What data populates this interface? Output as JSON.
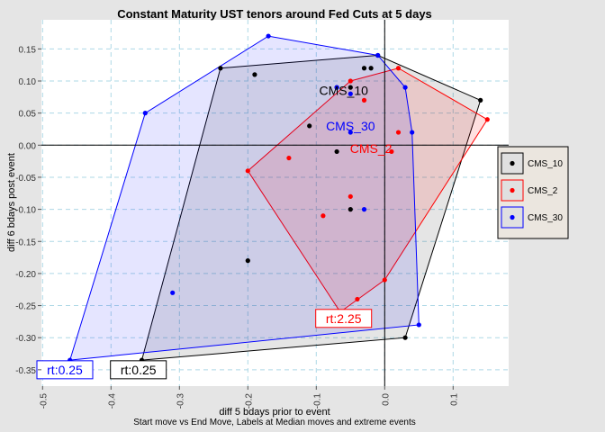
{
  "chart_data": {
    "type": "scatter",
    "title": "Constant Maturity UST tenors around Fed Cuts at 5 days",
    "xlabel": "diff 5 bdays prior to event",
    "ylabel": "diff 6 bdays post event",
    "subtitle": "Start move vs End Move, Labels at Median moves and extreme events",
    "xlim": [
      -0.505,
      0.18
    ],
    "ylim": [
      -0.375,
      0.195
    ],
    "xticks": [
      -0.5,
      -0.4,
      -0.3,
      -0.2,
      -0.1,
      0.0,
      0.1
    ],
    "xtick_labels": [
      "-0.5",
      "-0.4",
      "-0.3",
      "-0.2",
      "-0.1",
      "0.0",
      "0.1"
    ],
    "yticks": [
      0.15,
      0.1,
      0.05,
      0.0,
      -0.05,
      -0.1,
      -0.15,
      -0.2,
      -0.25,
      -0.3,
      -0.35
    ],
    "ytick_labels": [
      "0.15",
      "0.10",
      "0.05",
      "0.00",
      "-0.05",
      "-0.10",
      "-0.15",
      "-0.20",
      "-0.25",
      "-0.30",
      "-0.35"
    ],
    "grid": true,
    "legend_position": "right",
    "series": [
      {
        "name": "CMS_10",
        "color": "#000000",
        "fill": "rgba(0,0,0,0.10)",
        "points": [
          [
            -0.24,
            0.12
          ],
          [
            -0.19,
            0.11
          ],
          [
            -0.2,
            -0.18
          ],
          [
            -0.03,
            0.12
          ],
          [
            -0.02,
            0.12
          ],
          [
            -0.07,
            0.09
          ],
          [
            -0.05,
            0.09
          ],
          [
            -0.11,
            0.03
          ],
          [
            -0.07,
            -0.01
          ],
          [
            0.14,
            0.07
          ],
          [
            -0.05,
            -0.1
          ],
          [
            0.03,
            -0.3
          ],
          [
            -0.01,
            0.14
          ],
          [
            -0.355,
            -0.335
          ]
        ],
        "median_label": {
          "text": "CMS_10",
          "x": -0.06,
          "y": 0.085
        },
        "extreme_label": {
          "text": "rt:0.25",
          "x": -0.36,
          "y": -0.35
        }
      },
      {
        "name": "CMS_2",
        "color": "#ff0000",
        "fill": "rgba(255,0,0,0.12)",
        "points": [
          [
            -0.2,
            -0.04
          ],
          [
            -0.14,
            -0.02
          ],
          [
            -0.05,
            0.1
          ],
          [
            -0.03,
            0.07
          ],
          [
            0.02,
            0.12
          ],
          [
            0.15,
            0.04
          ],
          [
            0.02,
            0.02
          ],
          [
            0.01,
            -0.01
          ],
          [
            -0.05,
            -0.08
          ],
          [
            -0.09,
            -0.11
          ],
          [
            0.0,
            -0.21
          ],
          [
            -0.04,
            -0.24
          ],
          [
            -0.065,
            -0.26
          ]
        ],
        "median_label": {
          "text": "CMS_2",
          "x": -0.02,
          "y": -0.005
        },
        "extreme_label": {
          "text": "rt:2.25",
          "x": -0.06,
          "y": -0.27
        }
      },
      {
        "name": "CMS_30",
        "color": "#0000ff",
        "fill": "rgba(0,0,255,0.10)",
        "points": [
          [
            -0.35,
            0.05
          ],
          [
            -0.17,
            0.17
          ],
          [
            -0.01,
            0.14
          ],
          [
            0.03,
            0.09
          ],
          [
            0.04,
            0.02
          ],
          [
            -0.07,
            0.09
          ],
          [
            -0.05,
            0.08
          ],
          [
            -0.05,
            0.02
          ],
          [
            -0.03,
            -0.1
          ],
          [
            -0.31,
            -0.23
          ],
          [
            0.05,
            -0.28
          ],
          [
            -0.46,
            -0.335
          ]
        ],
        "median_label": {
          "text": "CMS_30",
          "x": -0.05,
          "y": 0.03
        },
        "extreme_label": {
          "text": "rt:0.25",
          "x": -0.47,
          "y": -0.35
        }
      }
    ]
  }
}
